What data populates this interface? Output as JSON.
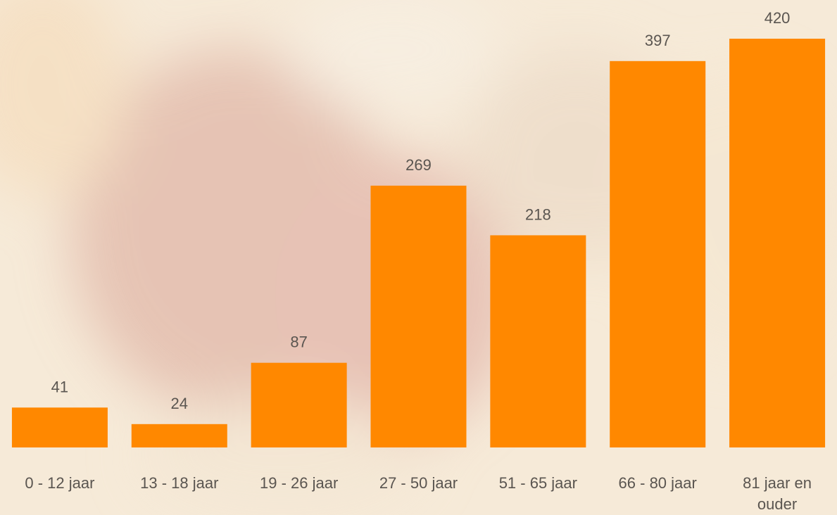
{
  "chart_data": {
    "type": "bar",
    "categories": [
      "0 - 12 jaar",
      "13 - 18 jaar",
      "19 - 26 jaar",
      "27 - 50 jaar",
      "51 - 65 jaar",
      "66 - 80 jaar",
      "81 jaar en ouder"
    ],
    "values": [
      41,
      24,
      87,
      269,
      218,
      397,
      420
    ],
    "color": "#ff8800"
  }
}
